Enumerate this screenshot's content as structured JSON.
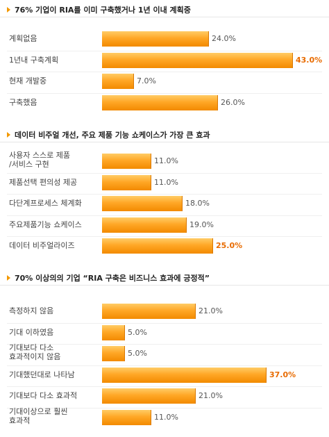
{
  "chart_data": [
    {
      "type": "bar",
      "orientation": "horizontal",
      "title": "76% 기업이 RIA를 이미 구축했거나 1년 이내 계획중",
      "categories": [
        "계획없음",
        "1년내 구축계획",
        "현재 개발중",
        "구축했음"
      ],
      "values": [
        24.0,
        43.0,
        7.0,
        26.0
      ],
      "value_labels": [
        "24.0%",
        "43.0%",
        "7.0%",
        "26.0%"
      ],
      "highlight_index": 1,
      "xlim": [
        0,
        43
      ]
    },
    {
      "type": "bar",
      "orientation": "horizontal",
      "title": "데이터 비주얼 개선, 주요 제품 기능 쇼케이스가 가장 큰 효과",
      "categories": [
        "사용자 스스로 제품\n/서비스 구현",
        "제품선택 편의성 제공",
        "다단계프로세스 체계화",
        "주요제품기능 쇼케이스",
        "데이터 비주얼라이즈"
      ],
      "values": [
        11.0,
        11.0,
        18.0,
        19.0,
        25.0
      ],
      "value_labels": [
        "11.0%",
        "11.0%",
        "18.0%",
        "19.0%",
        "25.0%"
      ],
      "highlight_index": 4,
      "xlim": [
        0,
        43
      ]
    },
    {
      "type": "bar",
      "orientation": "horizontal",
      "title": "70% 이상의의 기업 “RIA 구축은 비즈니스 효과에 긍정적”",
      "categories": [
        "측정하지 않음",
        "기대 이하였음",
        "기대보다 다소\n효과적이지 않음",
        "기대했던대로 나타남",
        "기대보다 다소 효과적",
        "기대이상으로 훨씬\n효과적"
      ],
      "values": [
        21.0,
        5.0,
        5.0,
        37.0,
        21.0,
        11.0
      ],
      "value_labels": [
        "21.0%",
        "5.0%",
        "5.0%",
        "37.0%",
        "21.0%",
        "11.0%"
      ],
      "highlight_index": 3,
      "xlim": [
        0,
        43
      ]
    }
  ],
  "colors": {
    "bar_top": "#ffcc66",
    "bar_bottom": "#f28a00",
    "highlight_text": "#e86b00",
    "bullet": "#f39800"
  },
  "icons": {
    "section_bullet": "triangle-right-icon"
  }
}
